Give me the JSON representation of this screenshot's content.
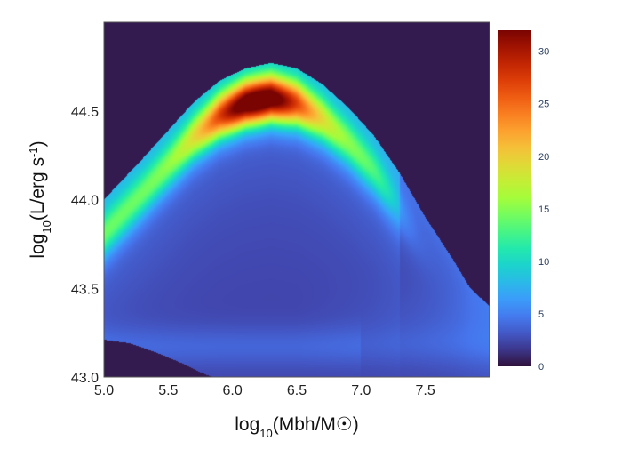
{
  "chart_data": {
    "type": "heatmap",
    "title": "",
    "xlabel": "log₁₀(Mbh/M☉)",
    "ylabel": "log₁₀(L/erg s⁻¹)",
    "xlabel_parts": {
      "pre": "log",
      "sub": "10",
      "post": "(Mbh/M☉)"
    },
    "ylabel_parts": {
      "pre": "log",
      "sub": "10",
      "mid": "(L/erg s",
      "sup": "-1",
      "post": ")"
    },
    "xlim": [
      5.0,
      8.0
    ],
    "ylim": [
      43.0,
      45.0
    ],
    "x_ticks": [
      5.0,
      5.5,
      6.0,
      6.5,
      7.0,
      7.5
    ],
    "x_tick_labels": [
      "5.0",
      "5.5",
      "6.0",
      "6.5",
      "7.0",
      "7.5"
    ],
    "y_ticks": [
      43.0,
      43.5,
      44.0,
      44.5
    ],
    "y_tick_labels": [
      "43.0",
      "43.5",
      "44.0",
      "44.5"
    ],
    "colorbar": {
      "colorscale": "turbo",
      "range": [
        0,
        32
      ],
      "ticks": [
        0,
        5,
        10,
        15,
        20,
        25,
        30
      ],
      "tick_labels": [
        "0",
        "5",
        "10",
        "15",
        "20",
        "25",
        "30"
      ]
    },
    "density": {
      "peak_value": 31,
      "peak_location": {
        "x": 6.2,
        "y": 44.5
      },
      "upper_envelope": [
        {
          "x": 5.0,
          "y": 44.0
        },
        {
          "x": 5.3,
          "y": 44.23
        },
        {
          "x": 5.5,
          "y": 44.39
        },
        {
          "x": 5.7,
          "y": 44.55
        },
        {
          "x": 5.9,
          "y": 44.67
        },
        {
          "x": 6.1,
          "y": 44.74
        },
        {
          "x": 6.3,
          "y": 44.77
        },
        {
          "x": 6.5,
          "y": 44.74
        },
        {
          "x": 6.7,
          "y": 44.65
        },
        {
          "x": 6.9,
          "y": 44.52
        },
        {
          "x": 7.1,
          "y": 44.36
        },
        {
          "x": 7.3,
          "y": 44.15
        },
        {
          "x": 7.5,
          "y": 43.9
        },
        {
          "x": 7.7,
          "y": 43.68
        },
        {
          "x": 7.85,
          "y": 43.5
        },
        {
          "x": 8.0,
          "y": 43.4
        }
      ],
      "lower_envelope": [
        {
          "x": 5.0,
          "y": 43.21
        },
        {
          "x": 5.2,
          "y": 43.19
        },
        {
          "x": 5.4,
          "y": 43.14
        },
        {
          "x": 5.6,
          "y": 43.08
        },
        {
          "x": 5.8,
          "y": 43.01
        },
        {
          "x": 5.85,
          "y": 43.0
        }
      ],
      "background_value": 0.4
    }
  }
}
